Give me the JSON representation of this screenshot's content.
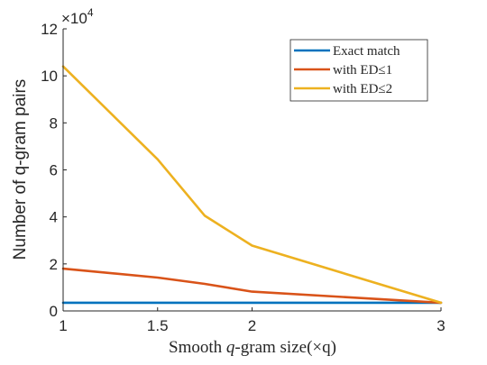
{
  "chart_data": {
    "type": "line",
    "title": "",
    "xlabel": "Smooth q-gram size(×q)",
    "xlabel_parts": {
      "prefix": "Smooth ",
      "italic": "q",
      "suffix": "-gram size(×q)"
    },
    "ylabel": "Number of q-gram pairs",
    "y_multiplier_label": {
      "base": "×10",
      "exponent": "4"
    },
    "xlim": [
      1,
      3
    ],
    "ylim": [
      0,
      12
    ],
    "xticks": [
      1,
      1.5,
      2,
      3
    ],
    "xtick_labels": [
      "1",
      "1.5",
      "2",
      "3"
    ],
    "yticks": [
      0,
      2,
      4,
      6,
      8,
      10,
      12
    ],
    "ytick_labels": [
      "0",
      "2",
      "4",
      "6",
      "8",
      "10",
      "12"
    ],
    "grid": false,
    "legend_position": "top-right",
    "series": [
      {
        "name": "Exact match",
        "color": "#0072BD",
        "x": [
          1,
          1.5,
          1.75,
          2,
          3
        ],
        "y": [
          0.35,
          0.35,
          0.35,
          0.35,
          0.35
        ]
      },
      {
        "name": "with ED≤1",
        "color": "#D95319",
        "x": [
          1,
          1.5,
          1.75,
          2,
          3
        ],
        "y": [
          1.8,
          1.42,
          1.15,
          0.82,
          0.35
        ]
      },
      {
        "name": "with ED≤2",
        "color": "#EDB120",
        "x": [
          1,
          1.5,
          1.75,
          2,
          3
        ],
        "y": [
          10.4,
          6.45,
          4.05,
          2.78,
          0.35
        ]
      }
    ]
  }
}
